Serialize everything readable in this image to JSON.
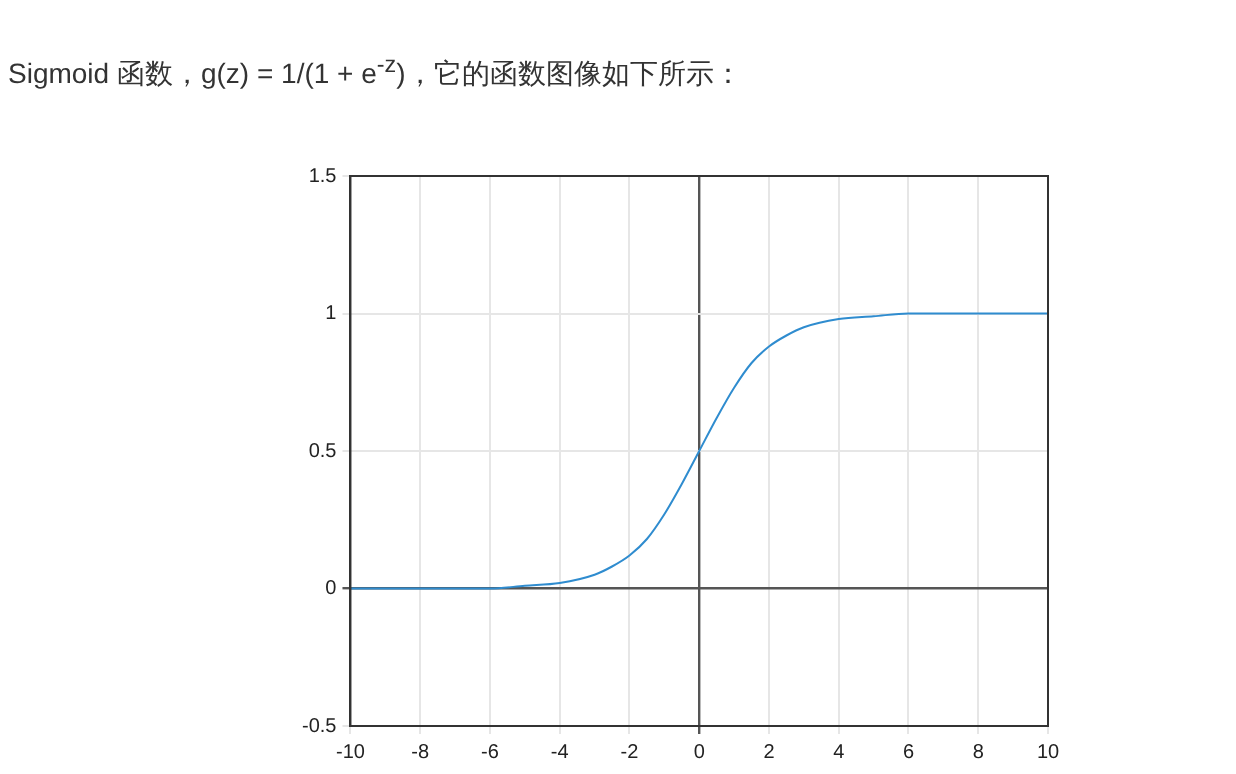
{
  "chart_data": {
    "type": "line",
    "title": "Sigmoid 函数，g(z) = 1/(1 + e$^{-z}$)，它的函数图像如下所示：",
    "x": [
      -10,
      -8,
      -6,
      -5,
      -4,
      -3,
      -2.5,
      -2,
      -1.5,
      -1,
      -0.5,
      0,
      0.5,
      1,
      1.5,
      2,
      2.5,
      3,
      4,
      5,
      6,
      8,
      10
    ],
    "series": [
      {
        "color": "#2f8ccf",
        "values": [
          0,
          0,
          0,
          0.01,
          0.02,
          0.05,
          0.08,
          0.12,
          0.18,
          0.27,
          0.38,
          0.5,
          0.62,
          0.73,
          0.82,
          0.88,
          0.92,
          0.95,
          0.98,
          0.99,
          1,
          1,
          1
        ]
      }
    ],
    "xlim": [
      -10,
      10
    ],
    "xticks": [
      -10,
      -8,
      -6,
      -4,
      -2,
      0,
      2,
      4,
      6,
      8,
      10
    ],
    "ylim": [
      -0.5,
      1.5
    ],
    "yticks": [
      -0.5,
      0,
      0.5,
      1,
      1.5
    ],
    "grid": true,
    "marker": "none",
    "line_style": "solid"
  }
}
